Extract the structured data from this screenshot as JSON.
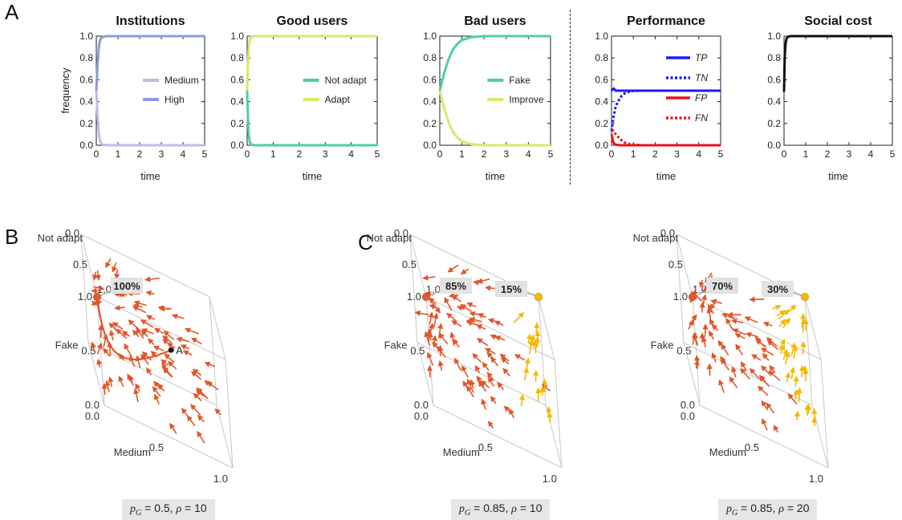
{
  "panel_labels": {
    "a": "A",
    "b": "B",
    "c": "C"
  },
  "top_row": {
    "ylabel": "frequency",
    "xlabel": "time",
    "xticks": [
      "0",
      "1",
      "2",
      "3",
      "4",
      "5"
    ],
    "yticks": [
      "0.0",
      "0.2",
      "0.4",
      "0.6",
      "0.8",
      "1.0"
    ]
  },
  "chart_data": [
    {
      "type": "line",
      "title": "Institutions",
      "xlabel": "time",
      "ylabel": "frequency",
      "xlim": [
        0,
        5
      ],
      "ylim": [
        0,
        1
      ],
      "legend_position": "center-right",
      "series": [
        {
          "name": "Medium",
          "color": "#c8b6ec",
          "dash": "solid",
          "points": [
            [
              0,
              0.5
            ],
            [
              0.05,
              0.3
            ],
            [
              0.1,
              0.14
            ],
            [
              0.15,
              0.06
            ],
            [
              0.2,
              0.025
            ],
            [
              0.3,
              0.005
            ],
            [
              0.5,
              0
            ],
            [
              5,
              0
            ]
          ]
        },
        {
          "name": "High",
          "color": "#8e9bd8",
          "dash": "solid",
          "points": [
            [
              0,
              0.5
            ],
            [
              0.05,
              0.7
            ],
            [
              0.1,
              0.86
            ],
            [
              0.15,
              0.94
            ],
            [
              0.2,
              0.975
            ],
            [
              0.3,
              0.995
            ],
            [
              0.5,
              1
            ],
            [
              5,
              1
            ]
          ]
        }
      ]
    },
    {
      "type": "line",
      "title": "Good users",
      "xlabel": "time",
      "xlim": [
        0,
        5
      ],
      "ylim": [
        0,
        1
      ],
      "legend_position": "center-right",
      "series": [
        {
          "name": "Not adapt",
          "color": "#4fcfa6",
          "dash": "solid",
          "points": [
            [
              0,
              0.5
            ],
            [
              0.03,
              0.25
            ],
            [
              0.06,
              0.1
            ],
            [
              0.1,
              0.03
            ],
            [
              0.15,
              0.008
            ],
            [
              0.25,
              0
            ],
            [
              5,
              0
            ]
          ]
        },
        {
          "name": "Adapt",
          "color": "#d9e86a",
          "dash": "solid",
          "points": [
            [
              0,
              0.5
            ],
            [
              0.03,
              0.75
            ],
            [
              0.06,
              0.9
            ],
            [
              0.1,
              0.97
            ],
            [
              0.15,
              0.992
            ],
            [
              0.25,
              1
            ],
            [
              5,
              1
            ]
          ]
        }
      ]
    },
    {
      "type": "line",
      "title": "Bad users",
      "xlabel": "time",
      "xlim": [
        0,
        5
      ],
      "ylim": [
        0,
        1
      ],
      "legend_position": "center-right",
      "series": [
        {
          "name": "Fake",
          "color": "#4fcfa6",
          "dash": "solid",
          "points": [
            [
              0,
              0.5
            ],
            [
              0.2,
              0.66
            ],
            [
              0.4,
              0.79
            ],
            [
              0.6,
              0.88
            ],
            [
              0.8,
              0.93
            ],
            [
              1.0,
              0.965
            ],
            [
              1.4,
              0.99
            ],
            [
              2,
              1
            ],
            [
              5,
              1
            ]
          ]
        },
        {
          "name": "Improve",
          "color": "#d9e86a",
          "dash": "solid",
          "points": [
            [
              0,
              0.5
            ],
            [
              0.2,
              0.34
            ],
            [
              0.4,
              0.21
            ],
            [
              0.6,
              0.12
            ],
            [
              0.8,
              0.07
            ],
            [
              1.0,
              0.035
            ],
            [
              1.4,
              0.01
            ],
            [
              2,
              0
            ],
            [
              5,
              0
            ]
          ]
        }
      ]
    },
    {
      "type": "line",
      "title": "Performance",
      "xlabel": "time",
      "xlim": [
        0,
        5
      ],
      "ylim": [
        0,
        1
      ],
      "legend_position": "top-right",
      "series": [
        {
          "name": "TP",
          "color": "#1a1aff",
          "dash": "solid",
          "points": [
            [
              0,
              0.5
            ],
            [
              0.1,
              0.52
            ],
            [
              0.2,
              0.5
            ],
            [
              0.3,
              0.5
            ],
            [
              0.5,
              0.5
            ],
            [
              5,
              0.5
            ]
          ]
        },
        {
          "name": "TN",
          "color": "#1a1aff",
          "dash": "dotted",
          "points": [
            [
              0,
              0.13
            ],
            [
              0.1,
              0.27
            ],
            [
              0.2,
              0.36
            ],
            [
              0.4,
              0.44
            ],
            [
              0.6,
              0.475
            ],
            [
              0.8,
              0.49
            ],
            [
              1.0,
              0.498
            ],
            [
              1.5,
              0.5
            ],
            [
              5,
              0.5
            ]
          ]
        },
        {
          "name": "FP",
          "color": "#e8141a",
          "dash": "solid",
          "points": [
            [
              0,
              0.1
            ],
            [
              0.05,
              0.05
            ],
            [
              0.1,
              0.02
            ],
            [
              0.2,
              0.005
            ],
            [
              0.4,
              0
            ],
            [
              5,
              0
            ]
          ]
        },
        {
          "name": "FN",
          "color": "#e8141a",
          "dash": "dotted",
          "points": [
            [
              0,
              0.14
            ],
            [
              0.1,
              0.13
            ],
            [
              0.2,
              0.1
            ],
            [
              0.4,
              0.055
            ],
            [
              0.6,
              0.025
            ],
            [
              0.8,
              0.012
            ],
            [
              1.0,
              0.005
            ],
            [
              1.5,
              0
            ],
            [
              5,
              0
            ]
          ]
        }
      ]
    },
    {
      "type": "line",
      "title": "Social cost",
      "xlabel": "time",
      "xlim": [
        0,
        5
      ],
      "ylim": [
        0,
        1
      ],
      "series": [
        {
          "name": "",
          "color": "#111111",
          "dash": "solid",
          "points": [
            [
              0,
              0.49
            ],
            [
              0.03,
              0.8
            ],
            [
              0.07,
              0.93
            ],
            [
              0.12,
              0.98
            ],
            [
              0.2,
              0.995
            ],
            [
              0.3,
              1
            ],
            [
              5,
              1
            ]
          ]
        }
      ]
    }
  ],
  "cubes": [
    {
      "id": "B",
      "axis_titles": {
        "not_adapt": "Not adapt",
        "fake": "Fake",
        "medium": "Medium"
      },
      "axis_ticks": {
        "not_adapt": [
          "1.0",
          "0.5",
          "0.0"
        ],
        "fake": [
          "1.0",
          "0.5",
          "0.0"
        ],
        "medium": [
          "0.0",
          "0.5",
          "1.0"
        ]
      },
      "callouts": [
        {
          "text": "100%",
          "corner": "left",
          "color": "#e25a2c"
        }
      ],
      "point_label": "A",
      "arrow_color": "#e2562a",
      "caption": {
        "p": "p",
        "sub": "G",
        "value": " = 0.5, ",
        "rho": "ρ",
        "rho_value": " = 10"
      }
    },
    {
      "id": "C1",
      "axis_titles": {
        "not_adapt": "Not adapt",
        "fake": "Fake",
        "medium": "Medium"
      },
      "axis_ticks": {
        "not_adapt": [
          "1.0",
          "0.5",
          "0.0"
        ],
        "fake": [
          "1.0",
          "0.5",
          "0.0"
        ],
        "medium": [
          "0.0",
          "0.5",
          "1.0"
        ]
      },
      "callouts": [
        {
          "text": "85%",
          "corner": "left",
          "color": "#e25a2c"
        },
        {
          "text": "15%",
          "corner": "right",
          "color": "#f5b800"
        }
      ],
      "arrow_color": "#e2562a",
      "caption": {
        "p": "p",
        "sub": "G",
        "value": " = 0.85, ",
        "rho": "ρ",
        "rho_value": " = 10"
      }
    },
    {
      "id": "C2",
      "axis_titles": {
        "not_adapt": "Not adapt",
        "fake": "Fake",
        "medium": "Medium"
      },
      "axis_ticks": {
        "not_adapt": [
          "1.0",
          "0.5",
          "0.0"
        ],
        "fake": [
          "1.0",
          "0.5",
          "0.0"
        ],
        "medium": [
          "0.0",
          "0.5",
          "1.0"
        ]
      },
      "callouts": [
        {
          "text": "70%",
          "corner": "left",
          "color": "#e25a2c"
        },
        {
          "text": "30%",
          "corner": "right",
          "color": "#f5b800"
        }
      ],
      "arrow_color": "#e2562a",
      "caption": {
        "p": "p",
        "sub": "G",
        "value": " = 0.85, ",
        "rho": "ρ",
        "rho_value": " = 20"
      }
    }
  ],
  "colors": {
    "orange_arrow": "#e2562a",
    "yellow_arrow": "#f5b800",
    "box_line": "#c8c8c8"
  }
}
